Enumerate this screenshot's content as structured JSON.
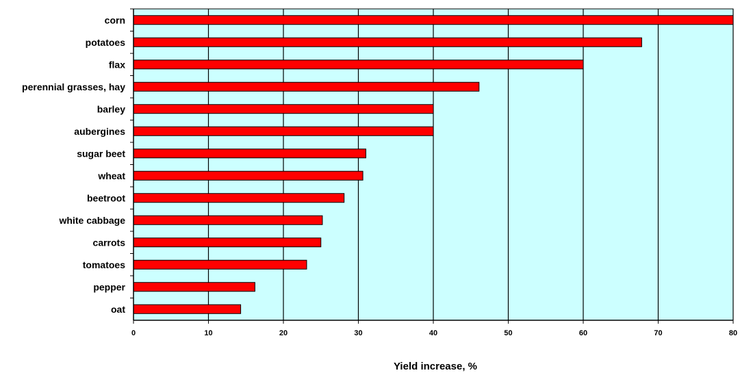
{
  "chart_data": {
    "type": "bar",
    "orientation": "horizontal",
    "title": "",
    "xlabel": "Yield increase, %",
    "ylabel": "",
    "categories": [
      "corn",
      "potatoes",
      "flax",
      "perennial grasses, hay",
      "barley",
      "aubergines",
      "sugar beet",
      "wheat",
      "beetroot",
      "white cabbage",
      "carrots",
      "tomatoes",
      "pepper",
      "oat"
    ],
    "values": [
      80,
      67.8,
      60,
      46.1,
      40,
      40,
      31,
      30.6,
      28.1,
      25.2,
      25,
      23.1,
      16.2,
      14.3
    ],
    "xlim": [
      0,
      80
    ],
    "xticks": [
      "0",
      "10",
      "20",
      "30",
      "40",
      "50",
      "60",
      "70",
      "80"
    ],
    "grid": "vertical",
    "legend": "none",
    "colors": {
      "bar": "#ff0000",
      "bar_border": "#000000",
      "plot_background": "#ccffff",
      "gridline": "#000000"
    }
  }
}
